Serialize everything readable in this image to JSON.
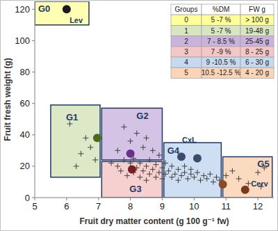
{
  "chart_data": {
    "type": "scatter",
    "x_label": "Fruit dry matter content (g 100 g⁻¹ fw)",
    "y_label": "Fruit fresh weight (g)",
    "xlim": [
      5,
      12.5
    ],
    "ylim": [
      0,
      125
    ],
    "xticks": [
      5,
      6,
      7,
      8,
      9,
      10,
      11,
      12
    ],
    "yticks": [
      0,
      20,
      40,
      60,
      80,
      100,
      120
    ],
    "grid": false,
    "series": [
      {
        "marker": "cross",
        "color": "#404040",
        "x": [
          6.1,
          6.3,
          6.45,
          6.6,
          6.75,
          6.9,
          7.8,
          8.2,
          8.5,
          8.0,
          8.7,
          8.4,
          7.6,
          8.9,
          7.4,
          7.6,
          7.7,
          7.8,
          7.9,
          8.0,
          8.1,
          8.1,
          8.2,
          8.3,
          8.3,
          8.4,
          8.5,
          8.5,
          8.6,
          8.6,
          8.7,
          8.8,
          8.8,
          8.9,
          9.0,
          9.0,
          9.1,
          9.1,
          9.2,
          9.3,
          9.3,
          9.4,
          9.5,
          9.5,
          9.6,
          9.7,
          9.7,
          9.8,
          9.9,
          9.9,
          10.0,
          10.1,
          10.2,
          10.3,
          10.4,
          10.5,
          10.6,
          10.7,
          10.8,
          11.0,
          11.2,
          11.4,
          11.7,
          12.0,
          12.2,
          12.1
        ],
        "values": [
          47,
          20,
          28,
          38,
          32,
          24,
          45,
          41,
          38,
          36,
          30,
          32,
          30,
          27,
          22,
          20,
          17,
          24,
          14,
          22,
          16,
          25,
          19,
          13,
          22,
          17,
          20,
          11,
          15,
          24,
          18,
          13,
          21,
          16,
          19,
          12,
          15,
          22,
          17,
          13,
          20,
          15,
          18,
          11,
          14,
          16,
          20,
          12,
          15,
          18,
          13,
          16,
          11,
          14,
          12,
          15,
          10,
          13,
          11,
          14,
          17,
          12,
          9,
          16,
          19,
          7
        ]
      },
      {
        "marker": "circle",
        "x": [
          6.0,
          6.96,
          8.0,
          8.05,
          9.6,
          10.1,
          10.9,
          11.6
        ],
        "values": [
          120,
          38,
          28,
          18,
          26,
          25,
          8.4,
          5
        ],
        "colors": [
          "#1a1a1a",
          "#4a6b1e",
          "#6b2f8c",
          "#7a1f1f",
          "#3d4a6b",
          "#3d4a6b",
          "#8b4a1f",
          "#7a3a1a"
        ]
      }
    ],
    "groups": [
      {
        "label": "G0",
        "color": "#ffffa6",
        "xlim": [
          5.0,
          6.7
        ],
        "ylim": [
          110,
          125
        ]
      },
      {
        "label": "G1",
        "color": "#d6e4bc",
        "xlim": [
          5.5,
          7.05
        ],
        "ylim": [
          13,
          59
        ]
      },
      {
        "label": "G2",
        "color": "#cdb9e0",
        "xlim": [
          7.1,
          9.0
        ],
        "ylim": [
          24,
          57
        ]
      },
      {
        "label": "G3",
        "color": "#f4c7c7",
        "xlim": [
          7.1,
          9.0
        ],
        "ylim": [
          0,
          23
        ]
      },
      {
        "label": "G4",
        "color": "#c6d9f1",
        "xlim": [
          9.05,
          10.85
        ],
        "ylim": [
          0,
          35
        ]
      },
      {
        "label": "G5",
        "color": "#fbd4b4",
        "xlim": [
          10.9,
          12.45
        ],
        "ylim": [
          0,
          26
        ]
      }
    ],
    "annotations": [
      {
        "text": "Lev",
        "x": 6.3,
        "y": 113
      },
      {
        "text": "CxL",
        "x": 9.85,
        "y": 37
      },
      {
        "text": "Cerv",
        "x": 12.05,
        "y": 9
      }
    ],
    "table": {
      "columns": [
        "Groups",
        "%DM",
        "FW g"
      ],
      "rows": [
        [
          0,
          "5 -7 %",
          "> 100 g"
        ],
        [
          1,
          "5 -7 %",
          "19-48 g"
        ],
        [
          2,
          "7 - 8.5 %",
          "25-45 g"
        ],
        [
          3,
          "7 -9 %",
          "8 - 25 g"
        ],
        [
          4,
          "9 -10.5 %",
          "6 - 30 g"
        ],
        [
          5,
          "10.5 -12.5 %",
          "4 - 20 g"
        ]
      ],
      "colors": [
        "#ffff99",
        "#d8e6c0",
        "#c9b3dd",
        "#f5c6c6",
        "#c5d9f0",
        "#fbd5b5"
      ]
    }
  }
}
